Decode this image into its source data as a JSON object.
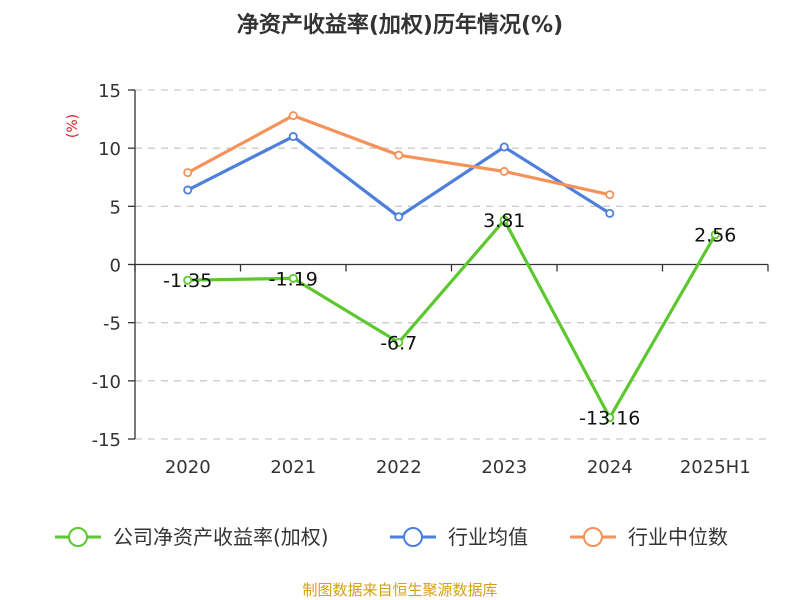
{
  "chart_data": {
    "type": "line",
    "title": "净资产收益率(加权)历年情况(%)",
    "ylabel": "(%)",
    "xlabel": "",
    "categories": [
      "2020",
      "2021",
      "2022",
      "2023",
      "2024",
      "2025H1"
    ],
    "ylim": [
      -15,
      15
    ],
    "yticks": [
      15,
      10,
      5,
      0,
      -5,
      -10,
      -15
    ],
    "grid": true,
    "legend_position": "bottom",
    "series": [
      {
        "name": "公司净资产收益率(加权)",
        "color": "#5cc82e",
        "values": [
          -1.35,
          -1.19,
          -6.7,
          3.81,
          -13.16,
          2.56
        ],
        "labels": [
          "-1.35",
          "-1.19",
          "-6.7",
          "3.81",
          "-13.16",
          "2.56"
        ]
      },
      {
        "name": "行业均值",
        "color": "#4d7fdc",
        "values": [
          6.4,
          11.0,
          4.1,
          10.1,
          4.4,
          null
        ]
      },
      {
        "name": "行业中位数",
        "color": "#f5925a",
        "values": [
          7.9,
          12.8,
          9.4,
          8.0,
          6.0,
          null
        ]
      }
    ]
  },
  "colors": {
    "axis": "#333333",
    "grid": "#cccccc",
    "unit_label": "#e02020",
    "source": "#d4a017"
  },
  "source": "制图数据来自恒生聚源数据库"
}
